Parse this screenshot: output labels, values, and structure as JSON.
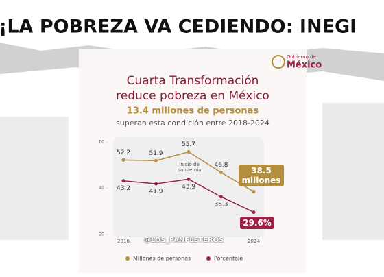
{
  "headline": "¡LA POBREZA VA CEDIENDO: INEGI",
  "logo": {
    "small": "Gobierno de",
    "main": "México"
  },
  "watermark": "@LOS_PANFLETEROS",
  "chart_data": {
    "type": "line",
    "title": [
      "Cuarta Transformación",
      "reduce pobreza en México"
    ],
    "subtitle": "13.4 millones de personas",
    "subtitle2": "superan esta condición entre 2018-2024",
    "categories": [
      "2016",
      null,
      null,
      null,
      "2024"
    ],
    "ylim": [
      20,
      60
    ],
    "yticks": [
      20,
      40,
      60
    ],
    "annotation": [
      "Inicio de",
      "pandemia"
    ],
    "series": [
      {
        "name": "Millones de personas",
        "color": "#b38e3c",
        "values": [
          52.2,
          51.9,
          55.7,
          46.8,
          38.5
        ],
        "value_labels": [
          "52.2",
          "51.9",
          "55.7",
          "46.8",
          "38.5 millones"
        ]
      },
      {
        "name": "Porcentaje",
        "color": "#9b2247",
        "values": [
          43.2,
          41.9,
          43.9,
          36.3,
          29.6
        ],
        "value_labels": [
          "43.2",
          "41.9",
          "43.9",
          "36.3",
          "29.6%"
        ]
      }
    ]
  }
}
